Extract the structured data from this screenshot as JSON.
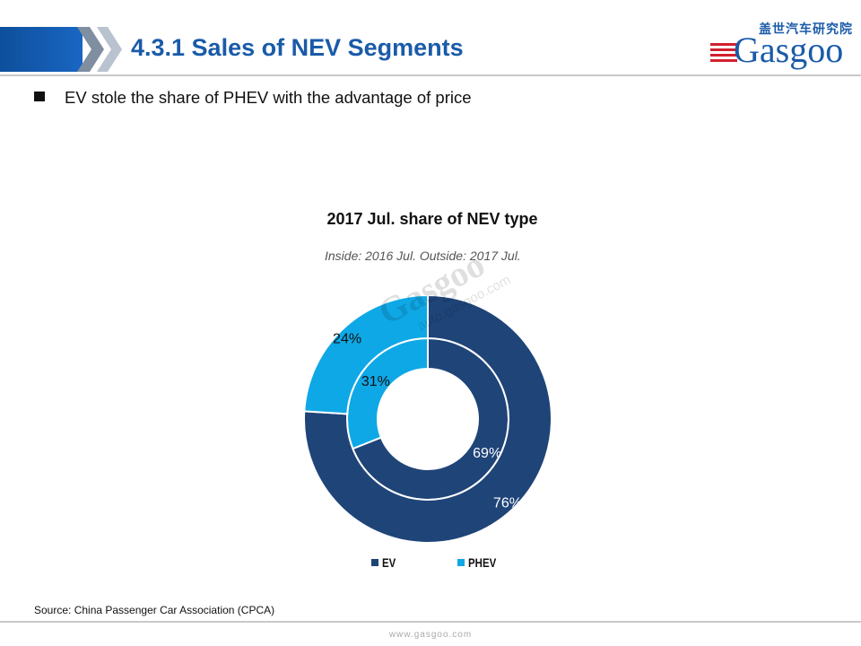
{
  "header": {
    "title": "4.3.1 Sales of NEV Segments"
  },
  "logo": {
    "cn_text": "盖世汽车研究院",
    "brand": "Gasgoo"
  },
  "bullet": {
    "text": "EV stole the share of PHEV with the advantage of price"
  },
  "chart_data": {
    "type": "pie",
    "title": "2017 Jul. share of NEV type",
    "subtitle": "Inside: 2016 Jul.  Outside: 2017 Jul.",
    "categories": [
      "EV",
      "PHEV"
    ],
    "series": [
      {
        "name": "2016 Jul.",
        "ring": "inner",
        "values": [
          69,
          31
        ],
        "labels": [
          "69%",
          "31%"
        ]
      },
      {
        "name": "2017 Jul.",
        "ring": "outer",
        "values": [
          76,
          24
        ],
        "labels": [
          "76%",
          "24%"
        ]
      }
    ],
    "colors": [
      "#1f4478",
      "#0fa8e6"
    ],
    "legend_position": "bottom"
  },
  "watermark": {
    "brand": "Gasgoo",
    "url": "auto.gasgoo.com"
  },
  "source": "Source: China Passenger Car Association (CPCA)",
  "footer": {
    "url": "www.gasgoo.com"
  }
}
